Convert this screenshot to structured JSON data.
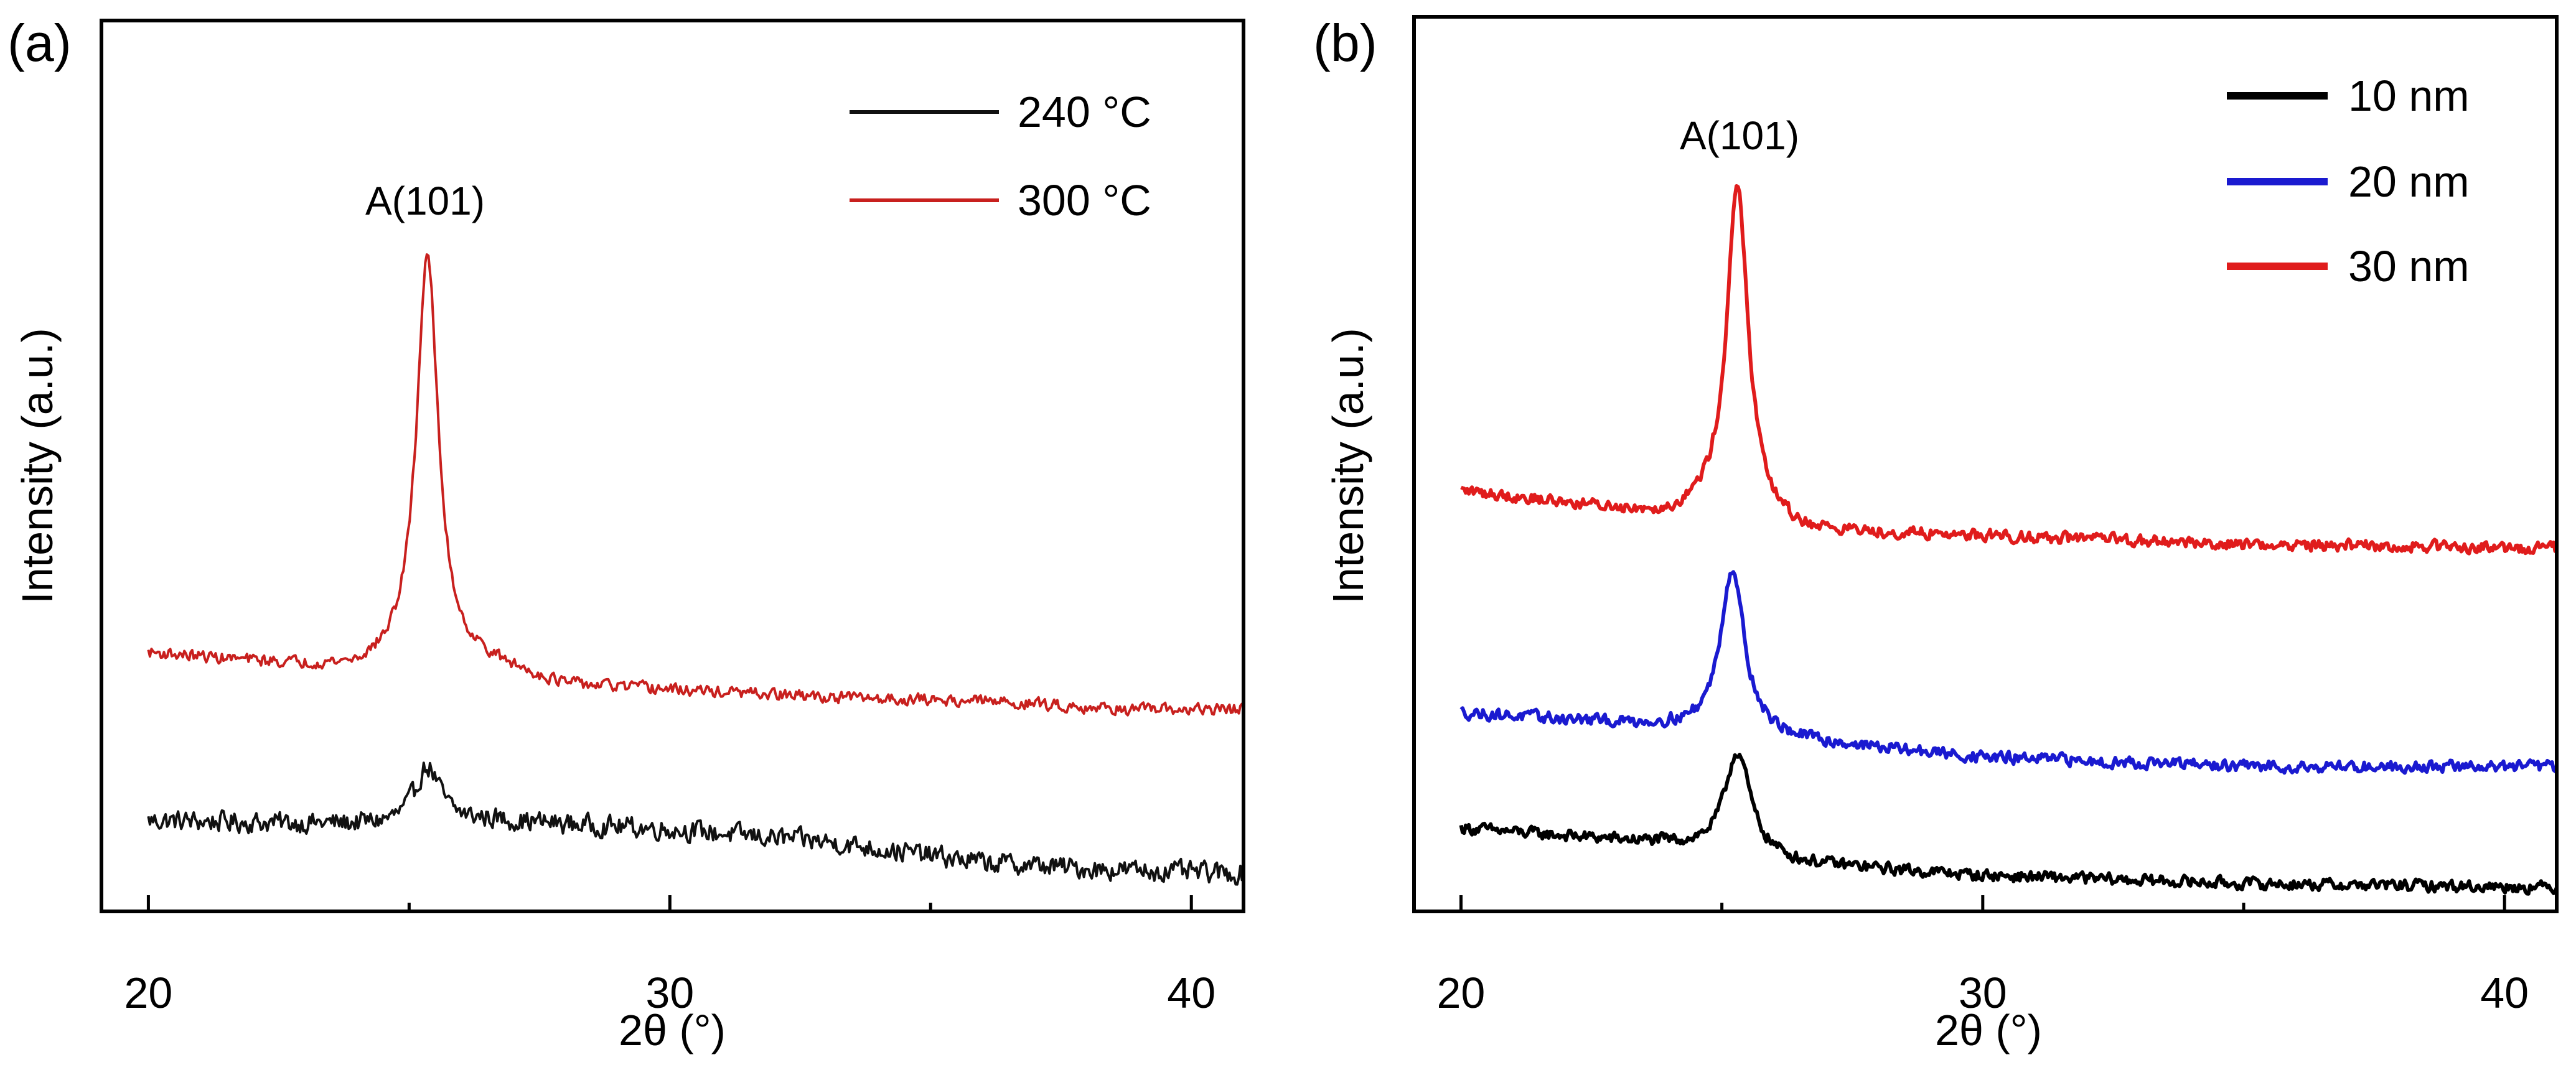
{
  "chart_data": [
    {
      "panel_label": "(a)",
      "type": "line",
      "xlabel": "2θ (°)",
      "ylabel": "Intensity (a.u.)",
      "xlim": [
        19.1,
        41.0
      ],
      "ylim": [
        0,
        100
      ],
      "xticks": [
        20,
        30,
        40
      ],
      "y_ticks_shown": false,
      "grid": false,
      "legend_position": "top-right",
      "annotations": [
        {
          "text": "A(101)",
          "x": 25.3,
          "y": 79
        }
      ],
      "series": [
        {
          "name": "240 °C",
          "color": "#111111",
          "baseline": [
            [
              20,
              10.2
            ],
            [
              25,
              9.6
            ],
            [
              26.5,
              10.2
            ],
            [
              30,
              9.2
            ],
            [
              33,
              7.8
            ],
            [
              36,
              5.5
            ],
            [
              38,
              4.8
            ],
            [
              41,
              4.2
            ]
          ],
          "noise": 1.6,
          "peak": {
            "center": 25.35,
            "height": 6.5,
            "width": 0.3
          }
        },
        {
          "name": "300 °C",
          "color": "#c8201e",
          "baseline": [
            [
              20,
              29.0
            ],
            [
              22,
              28.0
            ],
            [
              24,
              27.0
            ],
            [
              25.0,
              28.0
            ],
            [
              26.5,
              27.5
            ],
            [
              28,
              25.3
            ],
            [
              30,
              24.8
            ],
            [
              33,
              24.0
            ],
            [
              36,
              23.6
            ],
            [
              39,
              22.6
            ],
            [
              41,
              22.7
            ]
          ],
          "noise": 0.9,
          "peak": {
            "center": 25.35,
            "height": 46,
            "width": 0.25
          }
        }
      ]
    },
    {
      "panel_label": "(b)",
      "type": "line",
      "xlabel": "2θ (°)",
      "ylabel": "Intensity (a.u.)",
      "xlim": [
        19.1,
        41.0
      ],
      "ylim": [
        0,
        100
      ],
      "xticks": [
        20,
        30,
        40
      ],
      "y_ticks_shown": false,
      "grid": false,
      "legend_position": "top-right",
      "annotations": [
        {
          "text": "A(101)",
          "x": 25.3,
          "y": 86
        }
      ],
      "series": [
        {
          "name": "10 nm",
          "color": "#000000",
          "baseline": [
            [
              20,
              9.3
            ],
            [
              24,
              7.5
            ],
            [
              26.5,
              5.3
            ],
            [
              30,
              4.0
            ],
            [
              35,
              3.1
            ],
            [
              41,
              2.7
            ]
          ],
          "noise": 0.9,
          "peak": {
            "center": 25.3,
            "height": 11.5,
            "width": 0.3
          }
        },
        {
          "name": "20 nm",
          "color": "#1a1ad0",
          "baseline": [
            [
              20,
              22.2
            ],
            [
              24,
              20.6
            ],
            [
              26.5,
              19.0
            ],
            [
              30,
              17.2
            ],
            [
              35,
              16.2
            ],
            [
              41,
              16.2
            ]
          ],
          "noise": 0.9,
          "peak": {
            "center": 25.2,
            "height": 18.5,
            "width": 0.28
          }
        },
        {
          "name": "30 nm",
          "color": "#e01c1c",
          "baseline": [
            [
              20,
              47.0
            ],
            [
              24,
              44.2
            ],
            [
              25.0,
              45.5
            ],
            [
              26.5,
              42.4
            ],
            [
              30,
              42.0
            ],
            [
              35,
              41.0
            ],
            [
              41,
              40.6
            ]
          ],
          "noise": 0.9,
          "peak": {
            "center": 25.3,
            "height": 36.5,
            "width": 0.24
          }
        }
      ]
    }
  ]
}
